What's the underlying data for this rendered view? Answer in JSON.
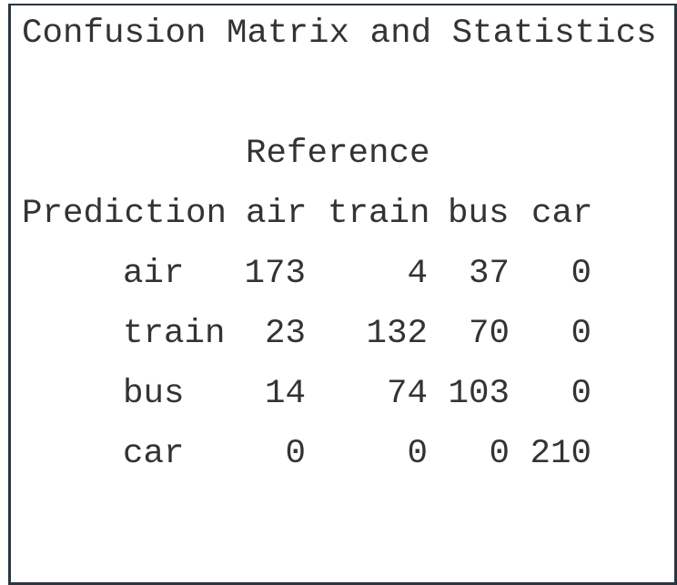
{
  "title": "Confusion Matrix and Statistics",
  "reference_label": "Reference",
  "prediction_label": "Prediction",
  "columns": [
    "air",
    "train",
    "bus",
    "car"
  ],
  "rows": [
    {
      "label": "air",
      "values": [
        "173",
        "4",
        "37",
        "0"
      ]
    },
    {
      "label": "train",
      "values": [
        "23",
        "132",
        "70",
        "0"
      ]
    },
    {
      "label": "bus",
      "values": [
        "14",
        "74",
        "103",
        "0"
      ]
    },
    {
      "label": "car",
      "values": [
        "0",
        "0",
        "0",
        "210"
      ]
    }
  ]
}
